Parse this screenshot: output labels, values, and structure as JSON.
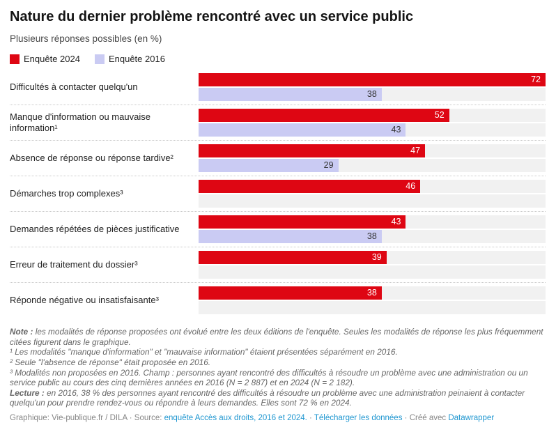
{
  "header": {
    "title": "Nature du dernier problème rencontré avec un service public",
    "subtitle": "Plusieurs réponses possibles (en %)"
  },
  "legend": [
    {
      "label": "Enquête 2024",
      "color": "#de0613"
    },
    {
      "label": "Enquête 2016",
      "color": "#cacbf3"
    }
  ],
  "chart_data": {
    "type": "bar",
    "orientation": "horizontal",
    "unit": "%",
    "xlim": [
      0,
      72
    ],
    "grid": false,
    "value_labels": "inside-end",
    "track_color": "#f1f1f1",
    "categories": [
      "Difficultés à contacter quelqu'un",
      "Manque d'information ou mauvaise information¹",
      "Absence de réponse ou réponse tardive²",
      "Démarches trop complexes³",
      "Demandes répétées de pièces justificative",
      "Erreur de traitement du dossier³",
      "Réponde négative ou insatisfaisante³"
    ],
    "series": [
      {
        "name": "Enquête 2024",
        "color": "#de0613",
        "values": [
          72,
          52,
          47,
          46,
          43,
          39,
          38
        ]
      },
      {
        "name": "Enquête 2016",
        "color": "#cacbf3",
        "values": [
          38,
          43,
          29,
          null,
          38,
          null,
          null
        ]
      }
    ]
  },
  "notes": {
    "note_label": "Note :",
    "note_text": " les modalités de réponse proposées ont évolué entre les deux éditions de l'enquête. Seules les modalités de réponse les plus fréquemment citées figurent dans le graphique.",
    "footnote1": "¹ Les modalités \"manque d'information\" et \"mauvaise information\" étaient présentées séparément en 2016.",
    "footnote2": "² Seule \"l'absence de réponse\" était proposée en 2016.",
    "footnote3": "³ Modalités non proposées en 2016. Champ : personnes ayant rencontré des difficultés à résoudre un problème avec une administration ou un service public au cours des cinq dernières années en 2016 (N = 2 887) et en 2024 (N = 2 182).",
    "lecture_label": "Lecture :",
    "lecture_text": " en 2016, 38 % des personnes ayant rencontré des difficultés à résoudre un problème avec une administration peinaient à contacter quelqu'un pour prendre rendez-vous ou répondre à leurs demandes. Elles sont 72 % en 2024."
  },
  "footer": {
    "graphique": "Graphique: Vie-publique.fr / DILA",
    "sep1": " · ",
    "source_label": "Source: ",
    "source_link": "enquête Accès aux droits, 2016 et 2024.",
    "sep2": "  · ",
    "download_link": "Télécharger les données",
    "sep3": " · ",
    "created_label": "Créé avec ",
    "datawrapper_link": "Datawrapper"
  }
}
